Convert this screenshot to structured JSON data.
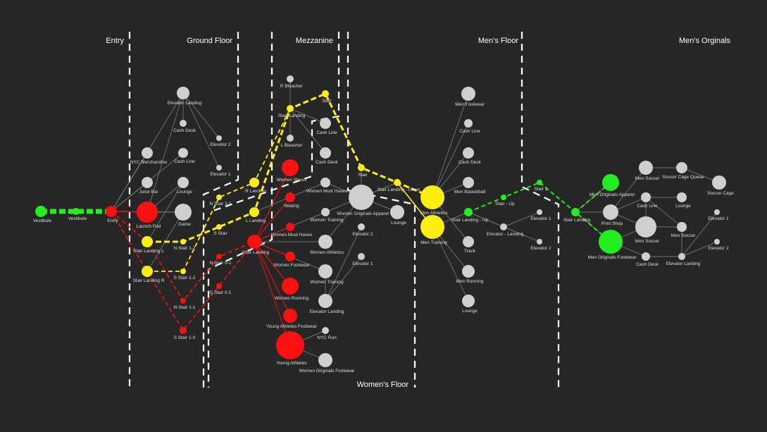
{
  "sections": [
    "Entry",
    "Ground Floor",
    "Mezzanine",
    "Women's Floor",
    "Men's Floor",
    "Men's Orginals"
  ],
  "nodes": [
    "Vestibule",
    "Vestibule",
    "Entry",
    "Elevator Landing",
    "Cash Desk",
    "Elevator 2",
    "NYC Merchandise",
    "Cash Line",
    "Elevator 1",
    "Juice Bar",
    "Lounge",
    "Launch Pad",
    "Game",
    "Stair Landing L",
    "N Stair 1-2",
    "Stair Landing R",
    "S Stair 1-2",
    "N Stair 1-1",
    "S Stair 1-0",
    "N Stair 2-1",
    "S Stair",
    "N Stair 0-1",
    "S Stair 0-1",
    "R Landing",
    "L Landing",
    "Stair Landing",
    "R Bleacher",
    "Stair",
    "Stair Landing",
    "L Bleacher",
    "Cash Line",
    "Women Shoes",
    "Cash Desk",
    "Women Must Haves",
    "Waiting",
    "Women Training",
    "Women Originals Apparel",
    "Women Must Haves",
    "Lounge",
    "Women Athletics",
    "Elevator 2",
    "Women Footwear",
    "Women Training",
    "Elevator 1",
    "Women Running",
    "Elevator Landing",
    "Young Athletes Footwear",
    "NYC Run",
    "Young Athletes",
    "Women Originals Footwear",
    "Stair",
    "Stair Landing - Down",
    "Men Athletics",
    "Men Training",
    "Men Footwear",
    "Cash Line",
    "Cash Desk",
    "Men Basketball",
    "Stair Landing - Up",
    "Track",
    "Men Running",
    "Lounge",
    "Stair - Up",
    "Elevator - Landing",
    "Stair 1",
    "Elevator 1",
    "Elevator 2",
    "Stair Landing",
    "Men Originals Apparel",
    "Print Shop",
    "Men Originals Footwear",
    "Men Soccer",
    "Cash Line",
    "Men Soccer",
    "Cash Desk",
    "Soccer Cage Queue",
    "Lounge",
    "Men Soccer",
    "Elevator Landing",
    "Soccer Cage",
    "Elevator 1",
    "Elevator 2"
  ]
}
